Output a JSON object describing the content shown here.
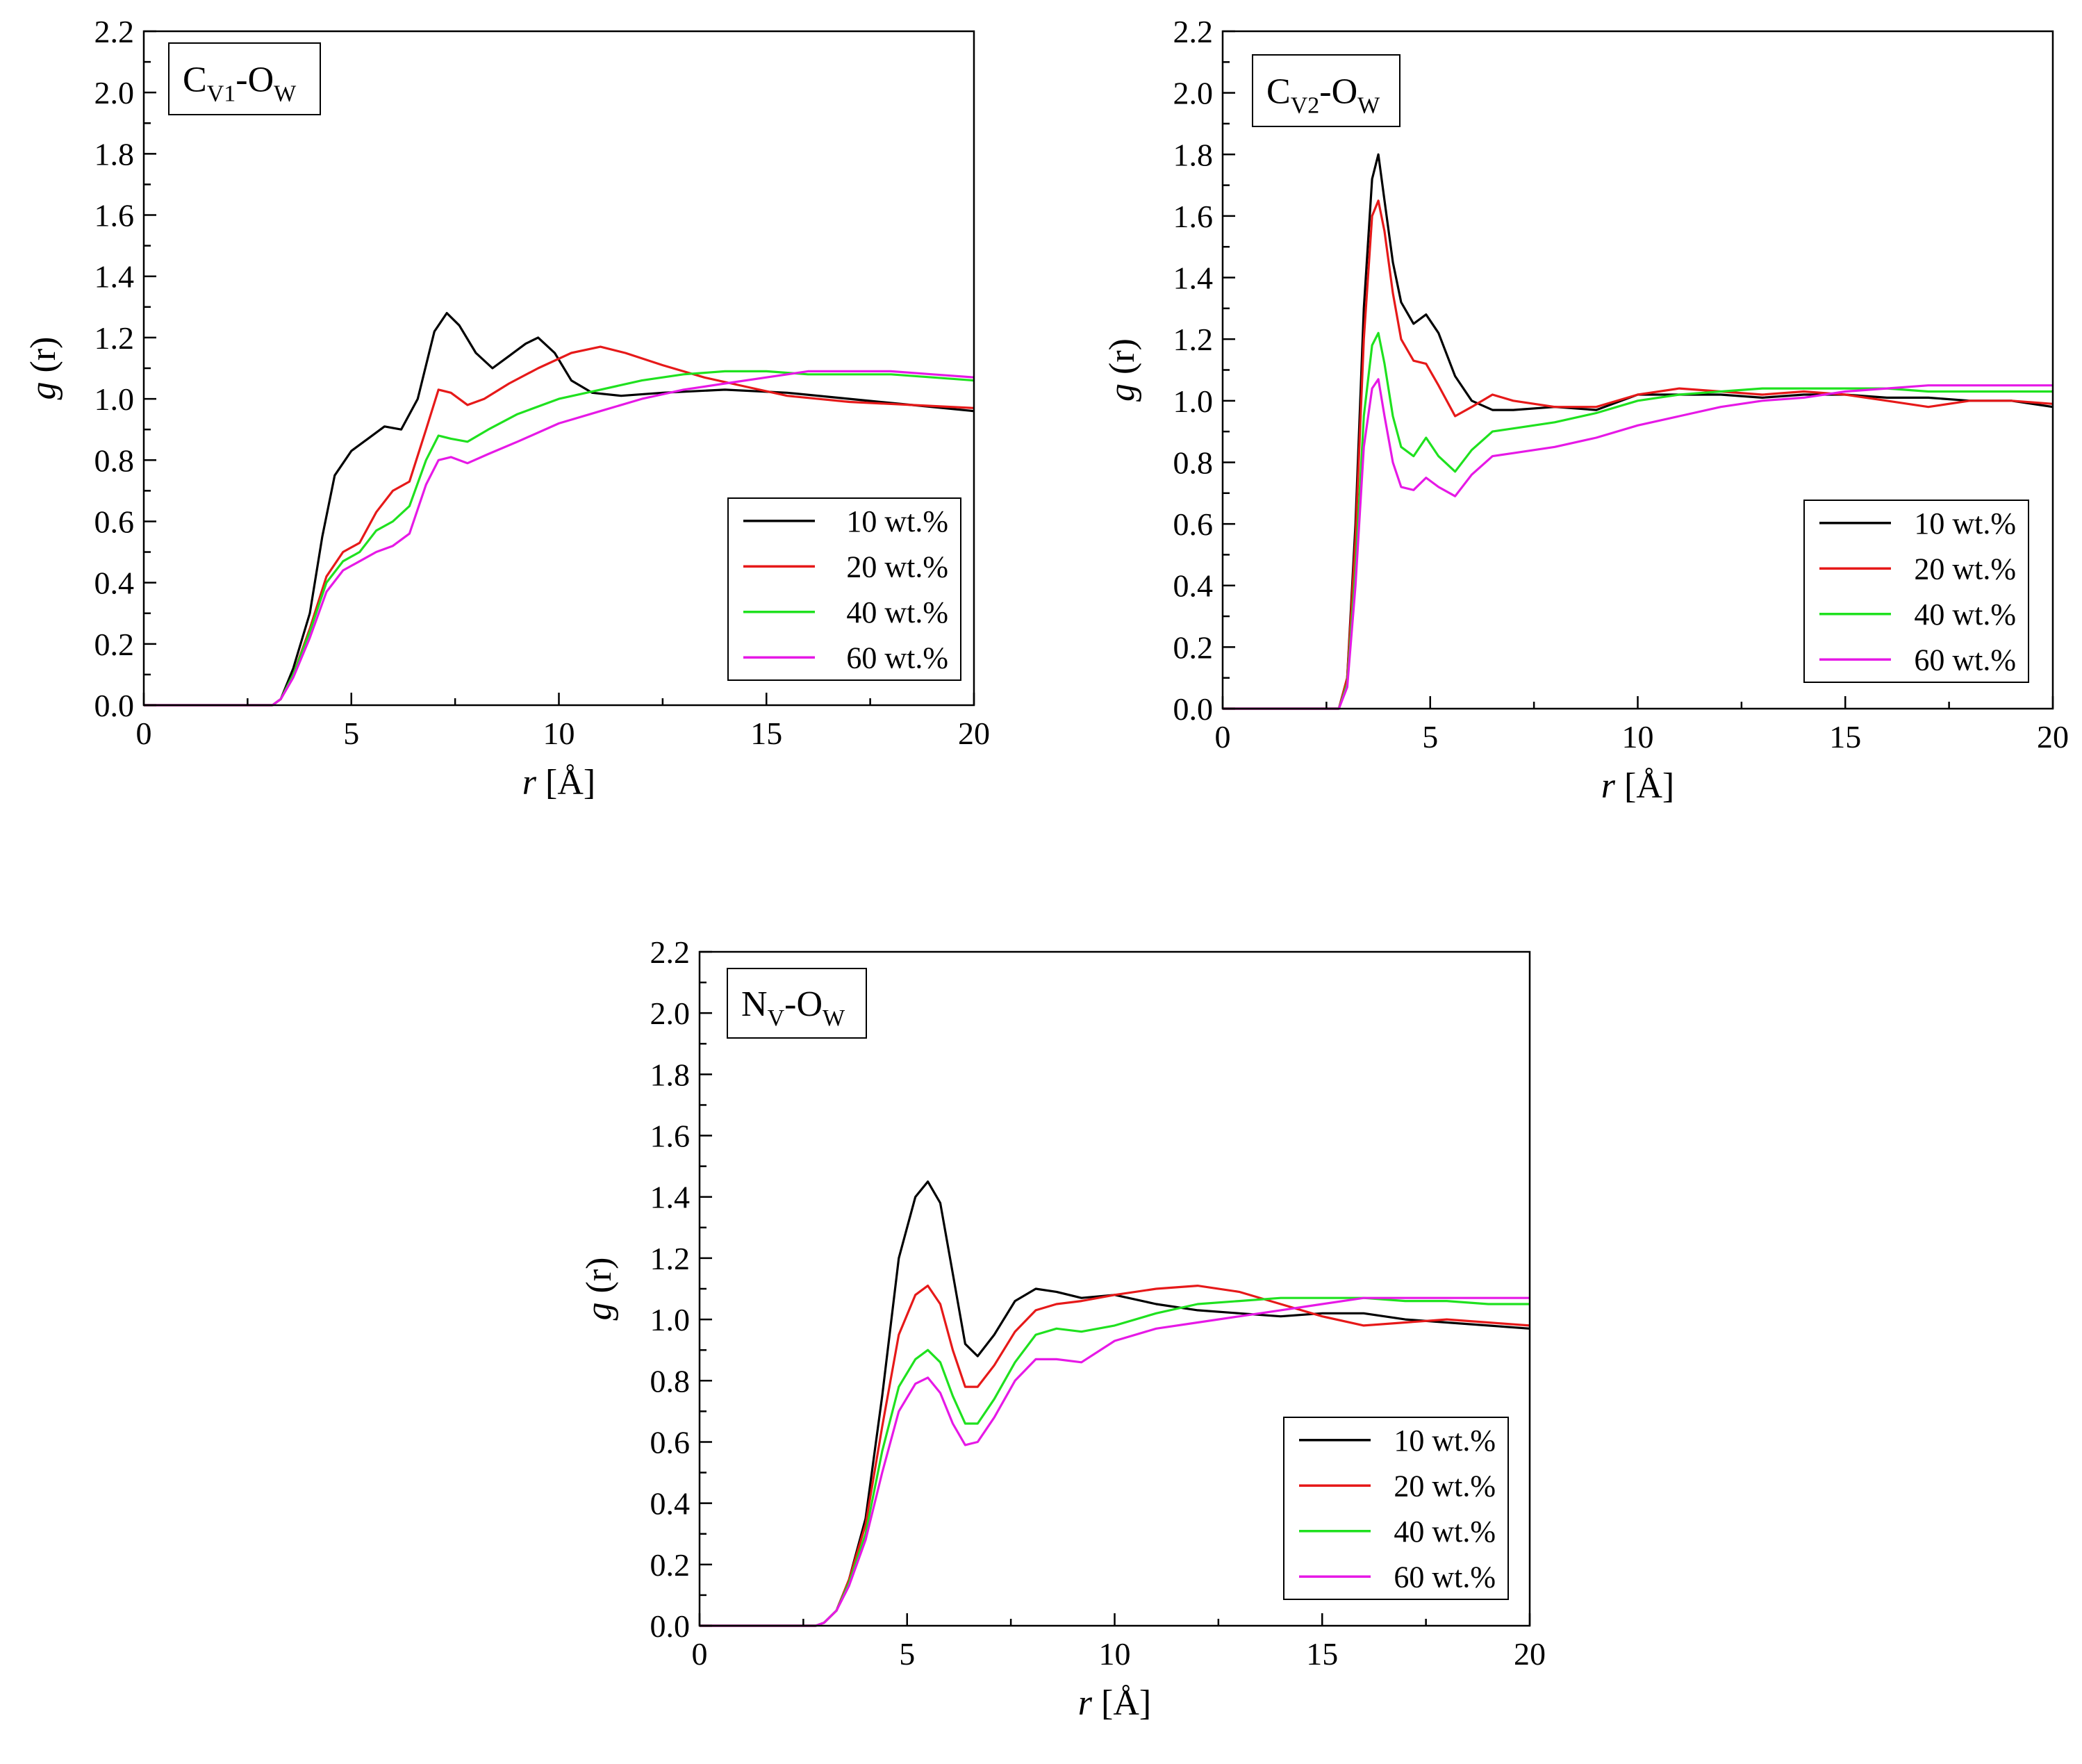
{
  "chart_data": [
    {
      "type": "line",
      "label": {
        "main": "C",
        "sub": "V1",
        "mid": "-O",
        "sub2": "W"
      },
      "xlabel_italic": "r",
      "xlabel_rest": " [Å]",
      "ylabel_italic": "g",
      "ylabel_rest": " (r)",
      "xlim": [
        0,
        20
      ],
      "ylim": [
        0,
        2.2
      ],
      "xticks": [
        0,
        5,
        10,
        15,
        20
      ],
      "xtick_labels": [
        "0",
        "5",
        "10",
        "15",
        "20"
      ],
      "yticks": [
        0,
        0.2,
        0.4,
        0.6,
        0.8,
        1.0,
        1.2,
        1.4,
        1.6,
        1.8,
        2.0,
        2.2
      ],
      "ytick_labels": [
        "0.0",
        "0.2",
        "0.4",
        "0.6",
        "0.8",
        "1.0",
        "1.2",
        "1.4",
        "1.6",
        "1.8",
        "2.0",
        "2.2"
      ],
      "legend_position": "right-middle",
      "series": [
        {
          "name": "10 wt.%",
          "color": "#000000",
          "x": [
            0,
            3.1,
            3.3,
            3.6,
            4.0,
            4.3,
            4.6,
            5.0,
            5.4,
            5.8,
            6.2,
            6.6,
            7.0,
            7.3,
            7.6,
            8.0,
            8.4,
            8.8,
            9.2,
            9.5,
            9.9,
            10.3,
            10.8,
            11.5,
            12.5,
            14.0,
            15.5,
            17.0,
            18.5,
            20.0
          ],
          "y": [
            0,
            0,
            0.02,
            0.12,
            0.3,
            0.55,
            0.75,
            0.83,
            0.87,
            0.91,
            0.9,
            1.0,
            1.22,
            1.28,
            1.24,
            1.15,
            1.1,
            1.14,
            1.18,
            1.2,
            1.15,
            1.06,
            1.02,
            1.01,
            1.02,
            1.03,
            1.02,
            1.0,
            0.98,
            0.96
          ]
        },
        {
          "name": "20 wt.%",
          "color": "#e61919",
          "x": [
            0,
            3.1,
            3.3,
            3.6,
            4.0,
            4.4,
            4.8,
            5.2,
            5.6,
            6.0,
            6.4,
            6.8,
            7.1,
            7.4,
            7.8,
            8.2,
            8.8,
            9.5,
            10.3,
            11.0,
            11.6,
            12.5,
            13.5,
            14.5,
            15.5,
            17.0,
            18.5,
            20.0
          ],
          "y": [
            0,
            0,
            0.02,
            0.1,
            0.25,
            0.42,
            0.5,
            0.53,
            0.63,
            0.7,
            0.73,
            0.9,
            1.03,
            1.02,
            0.98,
            1.0,
            1.05,
            1.1,
            1.15,
            1.17,
            1.15,
            1.11,
            1.07,
            1.04,
            1.01,
            0.99,
            0.98,
            0.97
          ]
        },
        {
          "name": "40 wt.%",
          "color": "#1fe11f",
          "x": [
            0,
            3.1,
            3.3,
            3.6,
            4.0,
            4.4,
            4.8,
            5.2,
            5.6,
            6.0,
            6.4,
            6.8,
            7.1,
            7.4,
            7.8,
            8.3,
            9.0,
            10.0,
            11.0,
            12.0,
            13.0,
            14.0,
            15.0,
            16.0,
            17.0,
            18.0,
            19.0,
            20.0
          ],
          "y": [
            0,
            0,
            0.02,
            0.1,
            0.24,
            0.4,
            0.47,
            0.5,
            0.57,
            0.6,
            0.65,
            0.8,
            0.88,
            0.87,
            0.86,
            0.9,
            0.95,
            1.0,
            1.03,
            1.06,
            1.08,
            1.09,
            1.09,
            1.08,
            1.08,
            1.08,
            1.07,
            1.06
          ]
        },
        {
          "name": "60 wt.%",
          "color": "#e619e6",
          "x": [
            0,
            3.1,
            3.3,
            3.6,
            4.0,
            4.4,
            4.8,
            5.2,
            5.6,
            6.0,
            6.4,
            6.8,
            7.1,
            7.4,
            7.8,
            8.3,
            9.0,
            10.0,
            11.0,
            12.0,
            13.0,
            14.0,
            15.0,
            16.0,
            17.0,
            18.0,
            19.0,
            20.0
          ],
          "y": [
            0,
            0,
            0.02,
            0.09,
            0.22,
            0.37,
            0.44,
            0.47,
            0.5,
            0.52,
            0.56,
            0.72,
            0.8,
            0.81,
            0.79,
            0.82,
            0.86,
            0.92,
            0.96,
            1.0,
            1.03,
            1.05,
            1.07,
            1.09,
            1.09,
            1.09,
            1.08,
            1.07
          ]
        }
      ]
    },
    {
      "type": "line",
      "label": {
        "main": "C",
        "sub": "V2",
        "mid": "-O",
        "sub2": "W"
      },
      "xlabel_italic": "r",
      "xlabel_rest": " [Å]",
      "ylabel_italic": "g",
      "ylabel_rest": " (r)",
      "xlim": [
        0,
        20
      ],
      "ylim": [
        0,
        2.2
      ],
      "xticks": [
        0,
        5,
        10,
        15,
        20
      ],
      "xtick_labels": [
        "0",
        "5",
        "10",
        "15",
        "20"
      ],
      "yticks": [
        0,
        0.2,
        0.4,
        0.6,
        0.8,
        1.0,
        1.2,
        1.4,
        1.6,
        1.8,
        2.0,
        2.2
      ],
      "ytick_labels": [
        "0.0",
        "0.2",
        "0.4",
        "0.6",
        "0.8",
        "1.0",
        "1.2",
        "1.4",
        "1.6",
        "1.8",
        "2.0",
        "2.2"
      ],
      "legend_position": "bottom-right",
      "series": [
        {
          "name": "10 wt.%",
          "color": "#000000",
          "x": [
            0,
            2.8,
            3.0,
            3.2,
            3.4,
            3.6,
            3.75,
            3.9,
            4.1,
            4.3,
            4.6,
            4.9,
            5.2,
            5.6,
            6.0,
            6.5,
            7.0,
            8.0,
            9.0,
            10.0,
            11.0,
            12.0,
            13.0,
            14.0,
            15.0,
            16.0,
            17.0,
            18.0,
            19.0,
            20.0
          ],
          "y": [
            0,
            0,
            0.1,
            0.6,
            1.3,
            1.72,
            1.8,
            1.65,
            1.45,
            1.32,
            1.25,
            1.28,
            1.22,
            1.08,
            1.0,
            0.97,
            0.97,
            0.98,
            0.97,
            1.02,
            1.02,
            1.02,
            1.01,
            1.02,
            1.02,
            1.01,
            1.01,
            1.0,
            1.0,
            0.98
          ]
        },
        {
          "name": "20 wt.%",
          "color": "#e61919",
          "x": [
            0,
            2.8,
            3.0,
            3.2,
            3.4,
            3.6,
            3.75,
            3.9,
            4.1,
            4.3,
            4.6,
            4.9,
            5.2,
            5.6,
            6.0,
            6.5,
            7.0,
            8.0,
            9.0,
            10.0,
            11.0,
            12.0,
            13.0,
            14.0,
            15.0,
            16.0,
            17.0,
            18.0,
            19.0,
            20.0
          ],
          "y": [
            0,
            0,
            0.1,
            0.55,
            1.2,
            1.6,
            1.65,
            1.55,
            1.35,
            1.2,
            1.13,
            1.12,
            1.05,
            0.95,
            0.98,
            1.02,
            1.0,
            0.98,
            0.98,
            1.02,
            1.04,
            1.03,
            1.02,
            1.03,
            1.02,
            1.0,
            0.98,
            1.0,
            1.0,
            0.99
          ]
        },
        {
          "name": "40 wt.%",
          "color": "#1fe11f",
          "x": [
            0,
            2.8,
            3.0,
            3.2,
            3.4,
            3.6,
            3.75,
            3.9,
            4.1,
            4.3,
            4.6,
            4.9,
            5.2,
            5.6,
            6.0,
            6.5,
            7.0,
            8.0,
            9.0,
            10.0,
            11.0,
            12.0,
            13.0,
            14.0,
            15.0,
            16.0,
            17.0,
            18.0,
            19.0,
            20.0
          ],
          "y": [
            0,
            0,
            0.08,
            0.45,
            0.95,
            1.18,
            1.22,
            1.12,
            0.95,
            0.85,
            0.82,
            0.88,
            0.82,
            0.77,
            0.84,
            0.9,
            0.91,
            0.93,
            0.96,
            1.0,
            1.02,
            1.03,
            1.04,
            1.04,
            1.04,
            1.04,
            1.03,
            1.03,
            1.03,
            1.03
          ]
        },
        {
          "name": "60 wt.%",
          "color": "#e619e6",
          "x": [
            0,
            2.8,
            3.0,
            3.2,
            3.4,
            3.6,
            3.75,
            3.9,
            4.1,
            4.3,
            4.6,
            4.9,
            5.2,
            5.6,
            6.0,
            6.5,
            7.0,
            8.0,
            9.0,
            10.0,
            11.0,
            12.0,
            13.0,
            14.0,
            15.0,
            16.0,
            17.0,
            18.0,
            19.0,
            20.0
          ],
          "y": [
            0,
            0,
            0.07,
            0.4,
            0.85,
            1.04,
            1.07,
            0.95,
            0.8,
            0.72,
            0.71,
            0.75,
            0.72,
            0.69,
            0.76,
            0.82,
            0.83,
            0.85,
            0.88,
            0.92,
            0.95,
            0.98,
            1.0,
            1.01,
            1.03,
            1.04,
            1.05,
            1.05,
            1.05,
            1.05
          ]
        }
      ]
    },
    {
      "type": "line",
      "label": {
        "main": "N",
        "sub": "V",
        "mid": "-O",
        "sub2": "W"
      },
      "xlabel_italic": "r",
      "xlabel_rest": " [Å]",
      "ylabel_italic": "g",
      "ylabel_rest": " (r)",
      "xlim": [
        0,
        20
      ],
      "ylim": [
        0,
        2.2
      ],
      "xticks": [
        0,
        5,
        10,
        15,
        20
      ],
      "xtick_labels": [
        "0",
        "5",
        "10",
        "15",
        "20"
      ],
      "yticks": [
        0,
        0.2,
        0.4,
        0.6,
        0.8,
        1.0,
        1.2,
        1.4,
        1.6,
        1.8,
        2.0,
        2.2
      ],
      "ytick_labels": [
        "0.0",
        "0.2",
        "0.4",
        "0.6",
        "0.8",
        "1.0",
        "1.2",
        "1.4",
        "1.6",
        "1.8",
        "2.0",
        "2.2"
      ],
      "legend_position": "bottom-right",
      "series": [
        {
          "name": "10 wt.%",
          "color": "#000000",
          "x": [
            0,
            2.8,
            3.0,
            3.3,
            3.6,
            4.0,
            4.4,
            4.8,
            5.2,
            5.5,
            5.8,
            6.1,
            6.4,
            6.7,
            7.1,
            7.6,
            8.1,
            8.6,
            9.2,
            10.0,
            11.0,
            12.0,
            13.0,
            14.0,
            15.0,
            16.0,
            17.0,
            18.0,
            19.0,
            20.0
          ],
          "y": [
            0,
            0,
            0.01,
            0.05,
            0.15,
            0.35,
            0.75,
            1.2,
            1.4,
            1.45,
            1.38,
            1.15,
            0.92,
            0.88,
            0.95,
            1.06,
            1.1,
            1.09,
            1.07,
            1.08,
            1.05,
            1.03,
            1.02,
            1.01,
            1.02,
            1.02,
            1.0,
            0.99,
            0.98,
            0.97
          ]
        },
        {
          "name": "20 wt.%",
          "color": "#e61919",
          "x": [
            0,
            2.8,
            3.0,
            3.3,
            3.6,
            4.0,
            4.4,
            4.8,
            5.2,
            5.5,
            5.8,
            6.1,
            6.4,
            6.7,
            7.1,
            7.6,
            8.1,
            8.6,
            9.2,
            10.0,
            11.0,
            12.0,
            13.0,
            14.0,
            15.0,
            16.0,
            17.0,
            18.0,
            19.0,
            20.0
          ],
          "y": [
            0,
            0,
            0.01,
            0.05,
            0.15,
            0.33,
            0.65,
            0.95,
            1.08,
            1.11,
            1.05,
            0.9,
            0.78,
            0.78,
            0.85,
            0.96,
            1.03,
            1.05,
            1.06,
            1.08,
            1.1,
            1.11,
            1.09,
            1.05,
            1.01,
            0.98,
            0.99,
            1.0,
            0.99,
            0.98
          ]
        },
        {
          "name": "40 wt.%",
          "color": "#1fe11f",
          "x": [
            0,
            2.8,
            3.0,
            3.3,
            3.6,
            4.0,
            4.4,
            4.8,
            5.2,
            5.5,
            5.8,
            6.1,
            6.4,
            6.7,
            7.1,
            7.6,
            8.1,
            8.6,
            9.2,
            10.0,
            11.0,
            12.0,
            13.0,
            14.0,
            15.0,
            16.0,
            17.0,
            18.0,
            19.0,
            20.0
          ],
          "y": [
            0,
            0,
            0.01,
            0.05,
            0.14,
            0.3,
            0.57,
            0.78,
            0.87,
            0.9,
            0.86,
            0.75,
            0.66,
            0.66,
            0.74,
            0.86,
            0.95,
            0.97,
            0.96,
            0.98,
            1.02,
            1.05,
            1.06,
            1.07,
            1.07,
            1.07,
            1.06,
            1.06,
            1.05,
            1.05
          ]
        },
        {
          "name": "60 wt.%",
          "color": "#e619e6",
          "x": [
            0,
            2.8,
            3.0,
            3.3,
            3.6,
            4.0,
            4.4,
            4.8,
            5.2,
            5.5,
            5.8,
            6.1,
            6.4,
            6.7,
            7.1,
            7.6,
            8.1,
            8.6,
            9.2,
            10.0,
            11.0,
            12.0,
            13.0,
            14.0,
            15.0,
            16.0,
            17.0,
            18.0,
            19.0,
            20.0
          ],
          "y": [
            0,
            0,
            0.01,
            0.05,
            0.13,
            0.28,
            0.5,
            0.7,
            0.79,
            0.81,
            0.76,
            0.66,
            0.59,
            0.6,
            0.68,
            0.8,
            0.87,
            0.87,
            0.86,
            0.93,
            0.97,
            0.99,
            1.01,
            1.03,
            1.05,
            1.07,
            1.07,
            1.07,
            1.07,
            1.07
          ]
        }
      ]
    }
  ]
}
